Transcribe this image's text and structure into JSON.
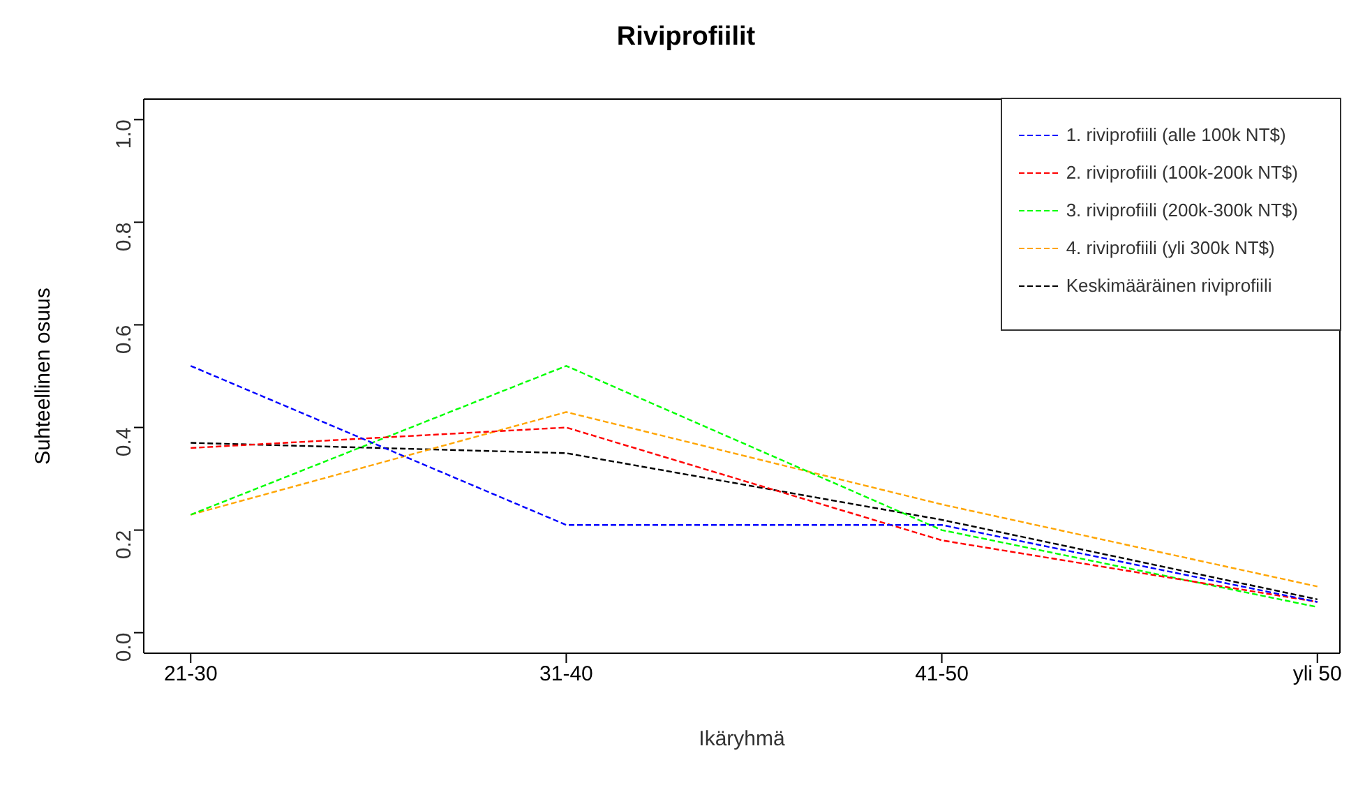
{
  "chart_data": {
    "type": "line",
    "title": "Riviprofiilit",
    "xlabel": "Ikäryhmä",
    "ylabel": "Suhteellinen osuus",
    "categories": [
      "21-30",
      "31-40",
      "41-50",
      "yli 50"
    ],
    "series": [
      {
        "name": "1. riviprofiili (alle 100k NT$)",
        "color": "#0000ff",
        "values": [
          0.52,
          0.21,
          0.21,
          0.06
        ]
      },
      {
        "name": "2. riviprofiili (100k-200k NT$)",
        "color": "#ff0000",
        "values": [
          0.36,
          0.4,
          0.18,
          0.06
        ]
      },
      {
        "name": "3. riviprofiili (200k-300k NT$)",
        "color": "#00ff00",
        "values": [
          0.23,
          0.52,
          0.2,
          0.05
        ]
      },
      {
        "name": "4. riviprofiili (yli 300k NT$)",
        "color": "#ffa500",
        "values": [
          0.23,
          0.43,
          0.25,
          0.09
        ]
      },
      {
        "name": "Keskimääräinen riviprofiili",
        "color": "#000000",
        "values": [
          0.37,
          0.35,
          0.22,
          0.065
        ]
      }
    ],
    "ylim": [
      -0.04,
      1.04
    ],
    "yticks": [
      {
        "value": 0,
        "label": "0.0"
      },
      0.2,
      0.4,
      0.6,
      0.8,
      {
        "value": 1,
        "label": "1.0"
      }
    ],
    "grid": false,
    "legend": "top right",
    "marker": "none",
    "line_style": "dashed"
  }
}
